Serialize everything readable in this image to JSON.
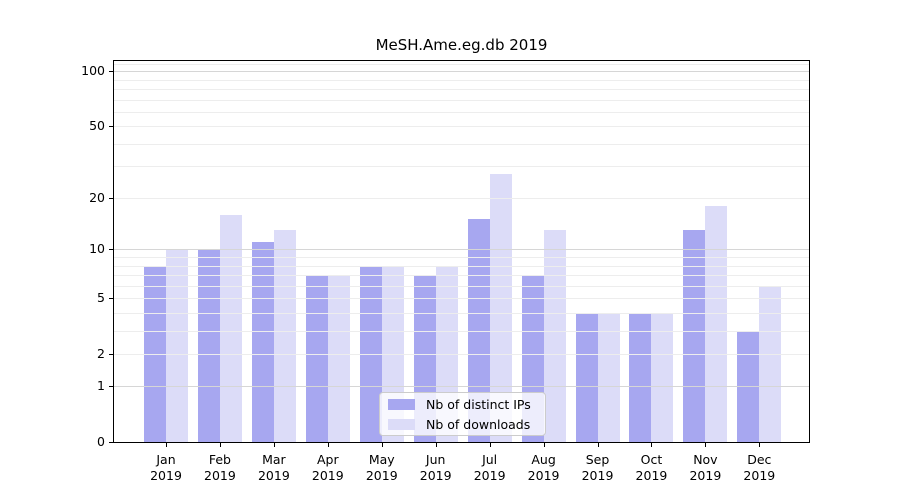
{
  "figure": {
    "title": "MeSH.Ame.eg.db 2019",
    "year_label": "2019"
  },
  "months": [
    "Jan",
    "Feb",
    "Mar",
    "Apr",
    "May",
    "Jun",
    "Jul",
    "Aug",
    "Sep",
    "Oct",
    "Nov",
    "Dec"
  ],
  "axes": {
    "y_ticks": [
      0,
      1,
      2,
      5,
      10,
      20,
      50,
      100
    ],
    "grid_major": [
      1,
      10,
      100
    ],
    "grid_minor": [
      2,
      3,
      4,
      5,
      6,
      7,
      8,
      9,
      20,
      30,
      40,
      50,
      60,
      70,
      80,
      90,
      110
    ]
  },
  "legend": {
    "items": [
      {
        "label": "Nb of distinct IPs",
        "key": "ips"
      },
      {
        "label": "Nb of downloads",
        "key": "downloads"
      }
    ]
  },
  "colors": {
    "ips": "#a7a7f0",
    "downloads": "#dcdcf8",
    "grid_major": "#d6d6d6",
    "grid_minor": "#ededed",
    "spine": "#000000",
    "legend_border": "#cccccc"
  },
  "chart_data": {
    "type": "bar",
    "title": "MeSH.Ame.eg.db 2019",
    "categories": [
      "Jan 2019",
      "Feb 2019",
      "Mar 2019",
      "Apr 2019",
      "May 2019",
      "Jun 2019",
      "Jul 2019",
      "Aug 2019",
      "Sep 2019",
      "Oct 2019",
      "Nov 2019",
      "Dec 2019"
    ],
    "series": [
      {
        "name": "Nb of distinct IPs",
        "values": [
          8,
          10,
          11,
          7,
          8,
          7,
          15,
          7,
          4,
          4,
          13,
          3
        ]
      },
      {
        "name": "Nb of downloads",
        "values": [
          10,
          16,
          13,
          7,
          8,
          8,
          27,
          13,
          4,
          4,
          18,
          6
        ]
      }
    ],
    "yscale": "log1p",
    "ylim": [
      0,
      114
    ],
    "yticks": [
      0,
      1,
      2,
      5,
      10,
      20,
      50,
      100
    ],
    "grid": "horizontal",
    "legend_position": "inside-bottom-center"
  }
}
